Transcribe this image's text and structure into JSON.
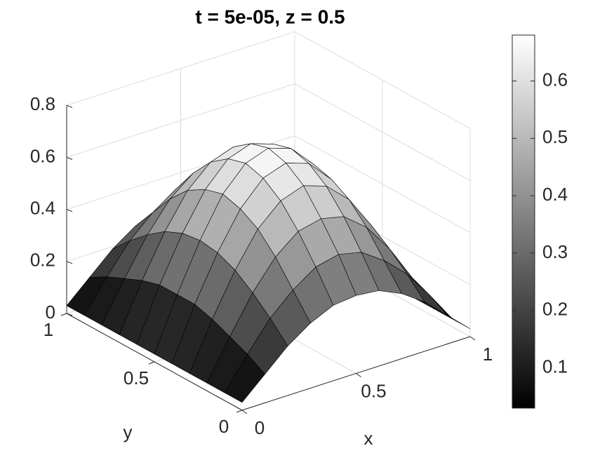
{
  "chart_data": {
    "type": "surface",
    "title": "t = 5e-05, z = 0.5",
    "x_label": "x",
    "y_label": "y",
    "x": [
      0,
      0.1,
      0.2,
      0.3,
      0.4,
      0.5,
      0.6,
      0.7,
      0.8,
      0.9,
      1
    ],
    "y": [
      0,
      0.1,
      0.2,
      0.3,
      0.4,
      0.5,
      0.6,
      0.7,
      0.8,
      0.9,
      1
    ],
    "z": [
      [
        0.03,
        0.11,
        0.19,
        0.25,
        0.29,
        0.3,
        0.29,
        0.25,
        0.19,
        0.11,
        0.03
      ],
      [
        0.03,
        0.15,
        0.26,
        0.34,
        0.4,
        0.42,
        0.4,
        0.34,
        0.26,
        0.15,
        0.03
      ],
      [
        0.03,
        0.18,
        0.32,
        0.43,
        0.5,
        0.52,
        0.5,
        0.43,
        0.32,
        0.18,
        0.03
      ],
      [
        0.03,
        0.21,
        0.37,
        0.5,
        0.58,
        0.61,
        0.58,
        0.5,
        0.37,
        0.21,
        0.03
      ],
      [
        0.03,
        0.23,
        0.4,
        0.54,
        0.63,
        0.66,
        0.63,
        0.54,
        0.4,
        0.23,
        0.03
      ],
      [
        0.03,
        0.23,
        0.41,
        0.56,
        0.65,
        0.68,
        0.65,
        0.56,
        0.41,
        0.23,
        0.03
      ],
      [
        0.03,
        0.23,
        0.4,
        0.54,
        0.63,
        0.66,
        0.63,
        0.54,
        0.4,
        0.23,
        0.03
      ],
      [
        0.03,
        0.21,
        0.37,
        0.5,
        0.58,
        0.61,
        0.58,
        0.5,
        0.37,
        0.21,
        0.03
      ],
      [
        0.03,
        0.18,
        0.32,
        0.43,
        0.5,
        0.52,
        0.5,
        0.43,
        0.32,
        0.18,
        0.03
      ],
      [
        0.03,
        0.15,
        0.26,
        0.34,
        0.4,
        0.42,
        0.4,
        0.34,
        0.26,
        0.15,
        0.03
      ],
      [
        0.03,
        0.11,
        0.19,
        0.25,
        0.29,
        0.3,
        0.29,
        0.25,
        0.19,
        0.11,
        0.03
      ]
    ],
    "xlim": [
      0,
      1
    ],
    "ylim": [
      0,
      1
    ],
    "zlim": [
      0,
      0.8
    ],
    "xticks": [
      0,
      0.5,
      1
    ],
    "yticks": [
      0,
      0.5,
      1
    ],
    "zticks": [
      0,
      0.2,
      0.4,
      0.6,
      0.8
    ],
    "colormap": "gray",
    "clim": [
      0.03,
      0.68
    ],
    "cticks": [
      0.1,
      0.2,
      0.3,
      0.4,
      0.5,
      0.6
    ],
    "grid": true,
    "edge_color": "#000000"
  }
}
